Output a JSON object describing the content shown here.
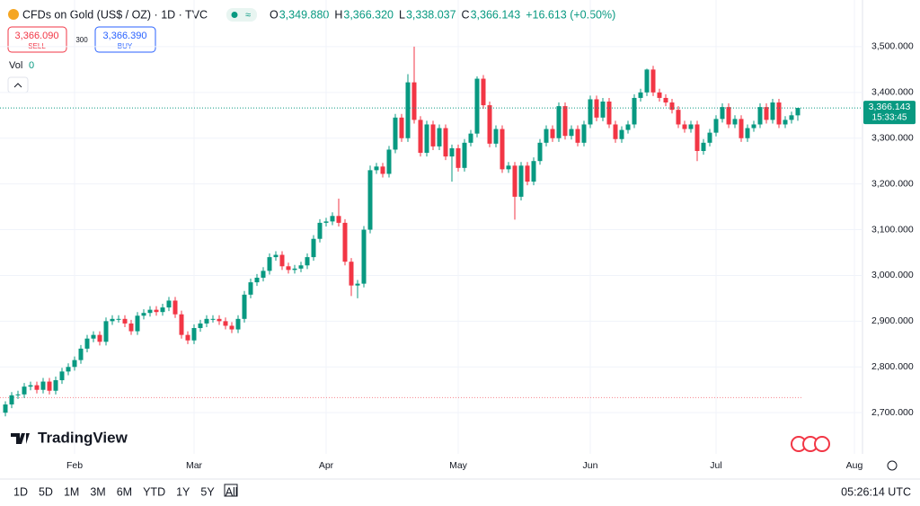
{
  "chart_data": {
    "type": "candlestick",
    "title": "CFDs on Gold (US$ / OZ) · 1D · TVC",
    "header": [
      {
        "key": "O",
        "value": "3,349.880"
      },
      {
        "key": "H",
        "value": "3,366.320"
      },
      {
        "key": "L",
        "value": "3,338.037"
      },
      {
        "key": "C",
        "value": "3,366.143"
      }
    ],
    "change": "+16.613 (+0.50%)",
    "sell": {
      "price": "3,366.090",
      "label": "SELL"
    },
    "spread": "300",
    "buy": {
      "price": "3,366.390",
      "label": "BUY"
    },
    "volume": {
      "label": "Vol",
      "value": "0"
    },
    "last_price": {
      "value": 3366.143,
      "label": "3,366.143",
      "countdown": "15:33:45"
    },
    "reference_line": 2733,
    "brand": "TradingView",
    "timeframes": [
      "1D",
      "5D",
      "1M",
      "3M",
      "6M",
      "YTD",
      "1Y",
      "5Y",
      "All"
    ],
    "clock": "05:26:14 UTC",
    "up_color": "#089981",
    "down_color": "#f23645",
    "ylim": [
      2610,
      3602
    ],
    "yticks": [
      {
        "value": 2700,
        "label": "2,700.000"
      },
      {
        "value": 2800,
        "label": "2,800.000"
      },
      {
        "value": 2900,
        "label": "2,900.000"
      },
      {
        "value": 3000,
        "label": "3,000.000"
      },
      {
        "value": 3100,
        "label": "3,100.000"
      },
      {
        "value": 3200,
        "label": "3,200.000"
      },
      {
        "value": 3300,
        "label": "3,300.000"
      },
      {
        "value": 3400,
        "label": "3,400.000"
      },
      {
        "value": 3500,
        "label": "3,500.000"
      }
    ],
    "categories": [
      null,
      null,
      null,
      null,
      null,
      null,
      null,
      null,
      null,
      null,
      null,
      "Feb",
      null,
      null,
      null,
      null,
      null,
      null,
      null,
      null,
      null,
      null,
      null,
      null,
      null,
      null,
      null,
      null,
      null,
      null,
      "Mar",
      null,
      null,
      null,
      null,
      null,
      null,
      null,
      null,
      null,
      null,
      null,
      null,
      null,
      null,
      null,
      null,
      null,
      null,
      null,
      null,
      "Apr",
      null,
      null,
      null,
      null,
      null,
      null,
      null,
      null,
      null,
      null,
      null,
      null,
      null,
      null,
      null,
      null,
      null,
      null,
      null,
      null,
      "May",
      null,
      null,
      null,
      null,
      null,
      null,
      null,
      null,
      null,
      null,
      null,
      null,
      null,
      null,
      null,
      null,
      null,
      null,
      null,
      null,
      "Jun",
      null,
      null,
      null,
      null,
      null,
      null,
      null,
      null,
      null,
      null,
      null,
      null,
      null,
      null,
      null,
      null,
      null,
      null,
      null,
      "Jul",
      null,
      null,
      null,
      null,
      null,
      null,
      null,
      null,
      null,
      null,
      null,
      null,
      null,
      null,
      null,
      null,
      null,
      null,
      null,
      null,
      null,
      "Aug"
    ],
    "open": [
      2700,
      2718,
      2738,
      2740,
      2757,
      2760,
      2750,
      2768,
      2748,
      2771,
      2790,
      2800,
      2815,
      2840,
      2862,
      2870,
      2855,
      2900,
      2905,
      2905,
      2895,
      2878,
      2912,
      2918,
      2925,
      2920,
      2930,
      2945,
      2915,
      2870,
      2858,
      2885,
      2895,
      2905,
      2905,
      2900,
      2890,
      2882,
      2905,
      2958,
      2985,
      2995,
      3010,
      3040,
      3045,
      3020,
      3012,
      3015,
      3022,
      3040,
      3080,
      3115,
      3118,
      3130,
      3115,
      3030,
      2978,
      2982,
      3100,
      3230,
      3238,
      3222,
      3275,
      3345,
      3300,
      3422,
      3340,
      3268,
      3330,
      3282,
      3322,
      3260,
      3278,
      3235,
      3290,
      3310,
      3430,
      3372,
      3288,
      3320,
      3232,
      3240,
      3172,
      3240,
      3205,
      3250,
      3290,
      3320,
      3300,
      3370,
      3305,
      3320,
      3290,
      3330,
      3385,
      3345,
      3380,
      3330,
      3298,
      3318,
      3330,
      3388,
      3400,
      3450,
      3400,
      3388,
      3378,
      3362,
      3330,
      3320,
      3330,
      3272,
      3290,
      3312,
      3342,
      3368,
      3330,
      3342,
      3300,
      3322,
      3330,
      3368,
      3340,
      3378,
      3330,
      3340,
      3349.88,
      null,
      null,
      null,
      null,
      null,
      null,
      null,
      null,
      null
    ],
    "high": [
      2725,
      2745,
      2748,
      2765,
      2768,
      2768,
      2776,
      2776,
      2779,
      2798,
      2808,
      2823,
      2848,
      2870,
      2878,
      2878,
      2908,
      2913,
      2913,
      2913,
      2903,
      2920,
      2926,
      2933,
      2933,
      2938,
      2953,
      2953,
      2923,
      2878,
      2893,
      2903,
      2913,
      2913,
      2913,
      2908,
      2898,
      2913,
      2966,
      2993,
      3003,
      3018,
      3048,
      3053,
      3053,
      3028,
      3023,
      3030,
      3048,
      3088,
      3123,
      3126,
      3138,
      3168,
      3123,
      3038,
      2990,
      3108,
      3240,
      3246,
      3246,
      3283,
      3353,
      3353,
      3440,
      3500,
      3348,
      3338,
      3338,
      3330,
      3330,
      3286,
      3286,
      3298,
      3318,
      3435,
      3438,
      3380,
      3328,
      3328,
      3248,
      3248,
      3248,
      3248,
      3258,
      3298,
      3328,
      3328,
      3378,
      3378,
      3328,
      3328,
      3338,
      3393,
      3393,
      3388,
      3388,
      3338,
      3326,
      3338,
      3396,
      3408,
      3452,
      3458,
      3408,
      3396,
      3386,
      3370,
      3338,
      3338,
      3338,
      3298,
      3320,
      3350,
      3376,
      3376,
      3350,
      3350,
      3330,
      3338,
      3376,
      3376,
      3386,
      3386,
      3348,
      3358,
      3366.32,
      null,
      null,
      null,
      null,
      null,
      null,
      null,
      null,
      null
    ],
    "low": [
      2692,
      2710,
      2730,
      2732,
      2749,
      2742,
      2742,
      2740,
      2740,
      2763,
      2782,
      2792,
      2807,
      2832,
      2854,
      2847,
      2847,
      2892,
      2897,
      2887,
      2870,
      2870,
      2904,
      2910,
      2912,
      2912,
      2922,
      2907,
      2862,
      2850,
      2850,
      2877,
      2887,
      2897,
      2892,
      2882,
      2874,
      2874,
      2897,
      2950,
      2977,
      2987,
      3002,
      3032,
      3012,
      3004,
      3004,
      3007,
      3014,
      3032,
      3072,
      3107,
      3110,
      3107,
      3022,
      2955,
      2950,
      2974,
      3092,
      3222,
      3214,
      3214,
      3267,
      3292,
      3292,
      3332,
      3260,
      3260,
      3274,
      3274,
      3252,
      3205,
      3227,
      3227,
      3282,
      3302,
      3364,
      3280,
      3280,
      3224,
      3224,
      3122,
      3164,
      3197,
      3197,
      3242,
      3282,
      3292,
      3292,
      3297,
      3297,
      3282,
      3282,
      3322,
      3337,
      3337,
      3322,
      3290,
      3290,
      3310,
      3322,
      3380,
      3392,
      3392,
      3380,
      3370,
      3354,
      3322,
      3312,
      3312,
      3250,
      3264,
      3282,
      3304,
      3334,
      3322,
      3322,
      3292,
      3292,
      3314,
      3322,
      3332,
      3332,
      3322,
      3322,
      3332,
      3338.037,
      null,
      null,
      null,
      null,
      null,
      null,
      null,
      null,
      null
    ],
    "close": [
      2718,
      2738,
      2740,
      2757,
      2760,
      2750,
      2768,
      2748,
      2771,
      2790,
      2800,
      2815,
      2840,
      2862,
      2870,
      2855,
      2900,
      2905,
      2905,
      2895,
      2878,
      2912,
      2918,
      2925,
      2920,
      2930,
      2945,
      2915,
      2870,
      2858,
      2885,
      2895,
      2905,
      2905,
      2900,
      2890,
      2882,
      2905,
      2958,
      2985,
      2995,
      3010,
      3040,
      3045,
      3020,
      3012,
      3015,
      3022,
      3040,
      3080,
      3115,
      3118,
      3130,
      3115,
      3030,
      2978,
      2982,
      3100,
      3230,
      3238,
      3222,
      3275,
      3345,
      3300,
      3422,
      3340,
      3268,
      3330,
      3282,
      3322,
      3260,
      3278,
      3235,
      3290,
      3310,
      3430,
      3372,
      3288,
      3320,
      3232,
      3240,
      3172,
      3240,
      3205,
      3250,
      3290,
      3320,
      3300,
      3370,
      3305,
      3320,
      3290,
      3330,
      3385,
      3345,
      3380,
      3330,
      3298,
      3318,
      3330,
      3388,
      3400,
      3450,
      3400,
      3388,
      3378,
      3362,
      3330,
      3320,
      3330,
      3272,
      3290,
      3312,
      3342,
      3368,
      3330,
      3342,
      3300,
      3322,
      3330,
      3368,
      3340,
      3378,
      3330,
      3340,
      3350,
      3366.143,
      null,
      null,
      null,
      null,
      null,
      null,
      null,
      null,
      null
    ]
  }
}
